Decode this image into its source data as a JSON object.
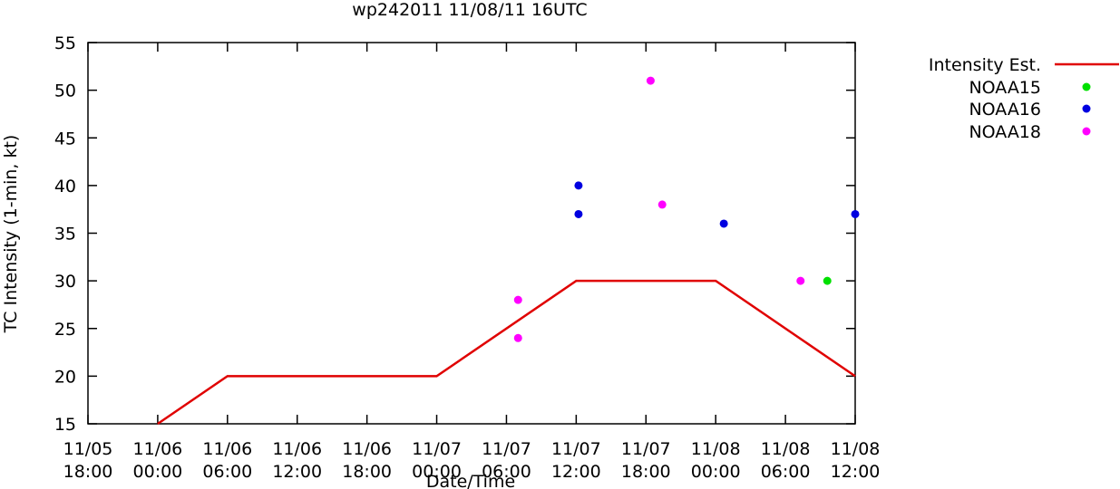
{
  "chart_data": {
    "type": "line",
    "title": "wp242011 11/08/11 16UTC",
    "xlabel": "Date/Time",
    "ylabel": "TC Intensity (1-min, kt)",
    "ylim": [
      15,
      55
    ],
    "yticks": [
      15,
      20,
      25,
      30,
      35,
      40,
      45,
      50,
      55
    ],
    "xlim_hours": [
      0,
      66
    ],
    "xticks": [
      {
        "hour": 0,
        "line1": "11/05",
        "line2": "18:00"
      },
      {
        "hour": 6,
        "line1": "11/06",
        "line2": "00:00"
      },
      {
        "hour": 12,
        "line1": "11/06",
        "line2": "06:00"
      },
      {
        "hour": 18,
        "line1": "11/06",
        "line2": "12:00"
      },
      {
        "hour": 24,
        "line1": "11/06",
        "line2": "18:00"
      },
      {
        "hour": 30,
        "line1": "11/07",
        "line2": "00:00"
      },
      {
        "hour": 36,
        "line1": "11/07",
        "line2": "06:00"
      },
      {
        "hour": 42,
        "line1": "11/07",
        "line2": "12:00"
      },
      {
        "hour": 48,
        "line1": "11/07",
        "line2": "18:00"
      },
      {
        "hour": 54,
        "line1": "11/08",
        "line2": "00:00"
      },
      {
        "hour": 60,
        "line1": "11/08",
        "line2": "06:00"
      },
      {
        "hour": 66,
        "line1": "11/08",
        "line2": "12:00"
      }
    ],
    "series": [
      {
        "name": "Intensity Est.",
        "kind": "line",
        "color": "#e00000",
        "points": [
          [
            6,
            15
          ],
          [
            12,
            20
          ],
          [
            30,
            20
          ],
          [
            42,
            30
          ],
          [
            54,
            30
          ],
          [
            66,
            20
          ]
        ]
      },
      {
        "name": "NOAA15",
        "kind": "scatter",
        "color": "#00e000",
        "points": [
          [
            63.6,
            30
          ]
        ]
      },
      {
        "name": "NOAA16",
        "kind": "scatter",
        "color": "#0000e0",
        "points": [
          [
            42.2,
            40
          ],
          [
            42.2,
            37
          ],
          [
            54.7,
            36
          ],
          [
            66,
            37
          ]
        ]
      },
      {
        "name": "NOAA18",
        "kind": "scatter",
        "color": "#ff00ff",
        "points": [
          [
            37,
            28
          ],
          [
            37,
            24
          ],
          [
            48.4,
            51
          ],
          [
            49.4,
            38
          ],
          [
            61.3,
            30
          ]
        ]
      }
    ],
    "legend": {
      "position": "top-right outside",
      "entries": [
        "Intensity Est.",
        "NOAA15",
        "NOAA16",
        "NOAA18"
      ]
    }
  }
}
